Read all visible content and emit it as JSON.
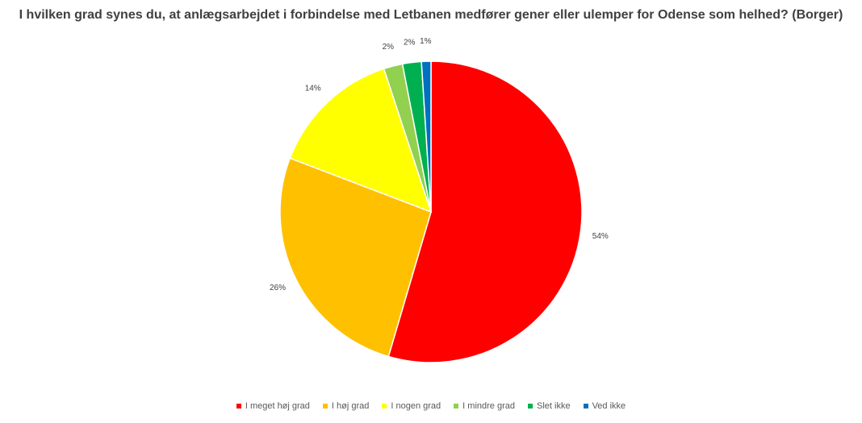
{
  "chart_data": {
    "type": "pie",
    "title": "I hvilken grad synes du, at anlægsarbejdet i forbindelse med Letbanen medfører gener eller ulemper for Odense som helhed? (Borger)",
    "categories": [
      "I meget høj grad",
      "I høj grad",
      "I nogen grad",
      "I mindre grad",
      "Slet ikke",
      "Ved ikke"
    ],
    "values": [
      54,
      26,
      14,
      2,
      2,
      1
    ],
    "labels": [
      "54%",
      "26%",
      "14%",
      "2%",
      "2%",
      "1%"
    ],
    "colors": [
      "#FF0000",
      "#FFC000",
      "#FFFF00",
      "#92D050",
      "#00B050",
      "#0070C0"
    ],
    "legend_position": "bottom"
  }
}
